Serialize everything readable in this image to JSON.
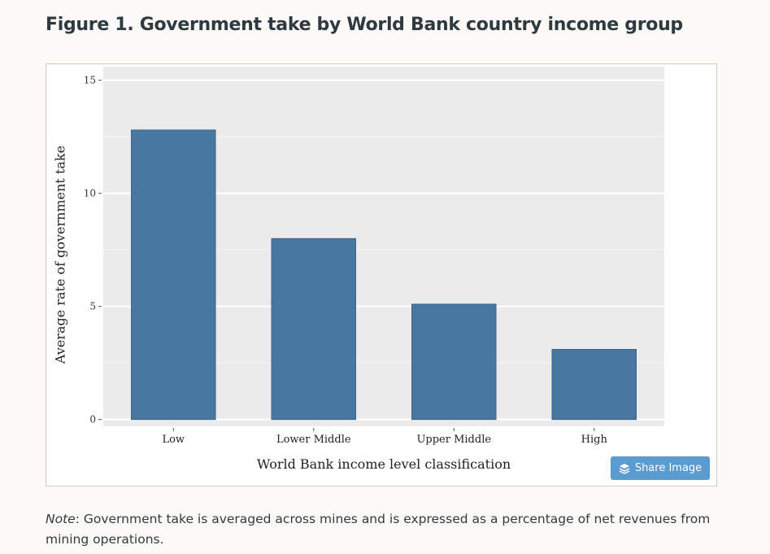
{
  "figure": {
    "title": "Figure 1. Government take by World Bank country income group"
  },
  "chart_data": {
    "type": "bar",
    "categories": [
      "Low",
      "Lower Middle",
      "Upper Middle",
      "High"
    ],
    "values": [
      12.8,
      8.0,
      5.1,
      3.1
    ],
    "title": "",
    "xlabel": "World Bank income level classification",
    "ylabel": "Average rate of government take",
    "ylim": [
      0,
      15
    ],
    "yticks": [
      0,
      5,
      10,
      15
    ],
    "grid": true,
    "bar_color": "#4878a2",
    "plot_background": "#ebebeb"
  },
  "share": {
    "label": "Share Image",
    "icon": "layers-icon",
    "color": "#5b9bd0"
  },
  "note": {
    "label": "Note",
    "text": ": Government take is averaged across mines and is expressed as a percentage of net revenues from mining operations."
  }
}
